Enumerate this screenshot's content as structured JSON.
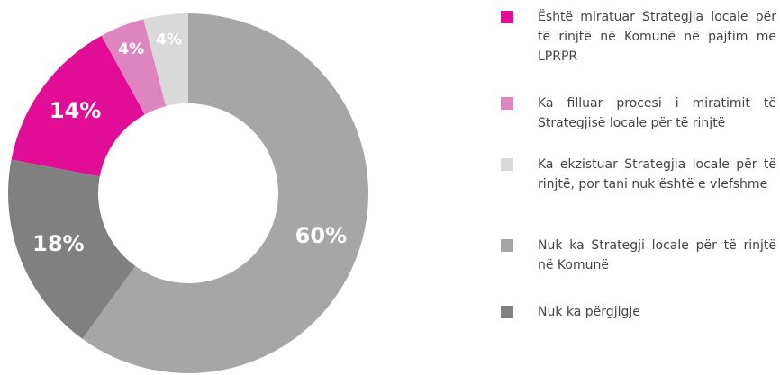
{
  "chart_data": {
    "type": "donut",
    "categories": [
      "Është miratuar Strategjia locale për të rinjtë në Komunë në pajtim me LPRPR",
      "Ka filluar procesi i miratimit të Strategjisë locale për të rinjtë",
      "Ka ekzistuar Strategjia locale për të rinjtë, por tani nuk është e vlefshme",
      "Nuk ka Strategji locale për të rinjtë në Komunë",
      "Nuk ka përgjigje"
    ],
    "values": [
      14,
      4,
      4,
      60,
      18
    ],
    "value_labels": [
      "14%",
      "4%",
      "4%",
      "60%",
      "18%"
    ],
    "colors": [
      "#e20d97",
      "#de85c0",
      "#d9d9d9",
      "#a6a6a6",
      "#808080"
    ],
    "legend": "right"
  }
}
